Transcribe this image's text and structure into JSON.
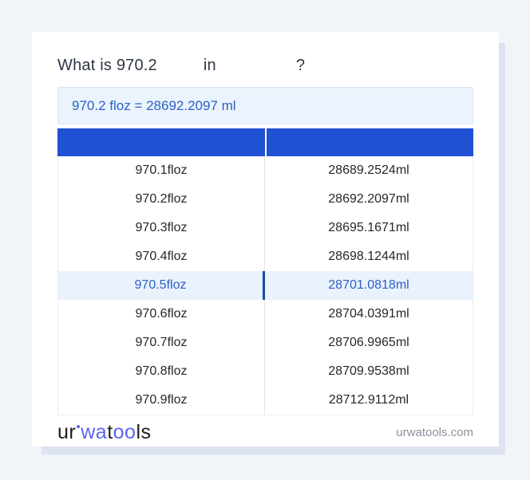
{
  "colors": {
    "page_background": "#f1f4f9",
    "card_background": "#ffffff",
    "header_blue": "#2151d3",
    "result_box_background": "#ebf3fc",
    "result_text_blue": "#2a62c8",
    "highlight_row_background": "#e9f2fd",
    "highlight_text_blue": "#2c5fc4",
    "highlight_divider_blue": "#1c4da4",
    "logo_blue": "#5864ef"
  },
  "title": {
    "prefix": "What is 970.2",
    "connector": "in",
    "suffix": "?"
  },
  "result": {
    "text": "970.2 floz = 28692.2097 ml"
  },
  "table": {
    "header": {
      "col1": "",
      "col2": ""
    },
    "rows": [
      {
        "floz": "970.1floz",
        "ml": "28689.2524ml",
        "highlighted": false
      },
      {
        "floz": "970.2floz",
        "ml": "28692.2097ml",
        "highlighted": false
      },
      {
        "floz": "970.3floz",
        "ml": "28695.1671ml",
        "highlighted": false
      },
      {
        "floz": "970.4floz",
        "ml": "28698.1244ml",
        "highlighted": false
      },
      {
        "floz": "970.5floz",
        "ml": "28701.0818ml",
        "highlighted": true
      },
      {
        "floz": "970.6floz",
        "ml": "28704.0391ml",
        "highlighted": false
      },
      {
        "floz": "970.7floz",
        "ml": "28706.9965ml",
        "highlighted": false
      },
      {
        "floz": "970.8floz",
        "ml": "28709.9538ml",
        "highlighted": false
      },
      {
        "floz": "970.9floz",
        "ml": "28712.9112ml",
        "highlighted": false
      }
    ]
  },
  "footer": {
    "logo": {
      "part1": "ur",
      "part2": "wa",
      "part3": "t",
      "part4": "oo",
      "part5": "ls"
    },
    "site": "urwatools.com"
  }
}
